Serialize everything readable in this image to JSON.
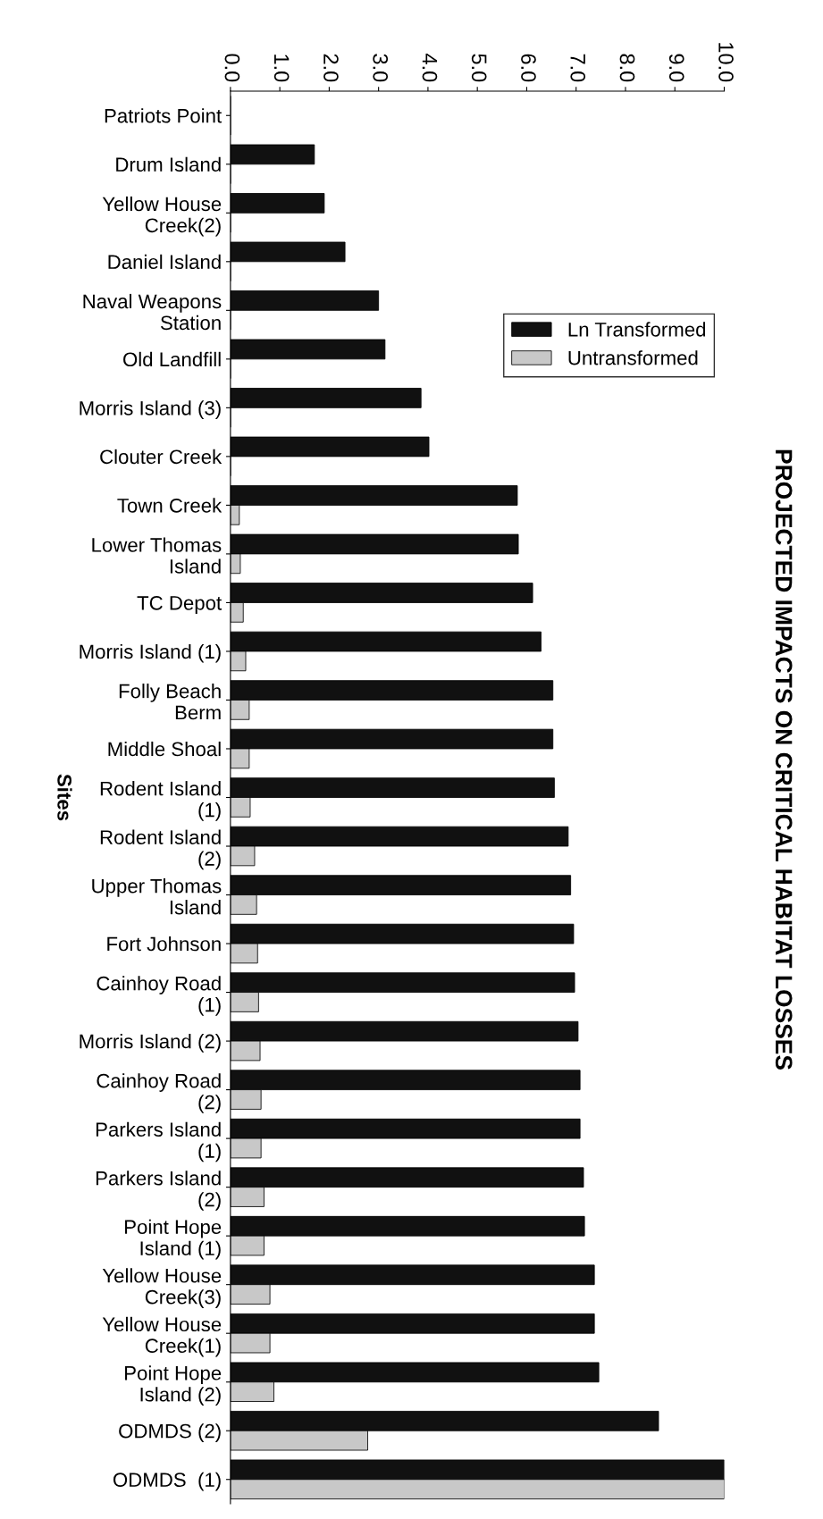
{
  "chart_data": {
    "type": "bar",
    "orientation": "horizontal",
    "title": "PROJECTED IMPACTS ON CRITICAL HABITAT LOSSES",
    "ylabel": "Sites",
    "categories": [
      "Patriots Point",
      "Drum Island",
      "Yellow House\nCreek(2)",
      "Daniel Island",
      "Naval Weapons\nStation",
      "Old Landfill",
      "Morris Island (3)",
      "Clouter Creek",
      "Town Creek",
      "Lower Thomas\nIsland",
      "TC Depot",
      "Morris Island (1)",
      "Folly Beach\nBerm",
      "Middle Shoal",
      "Rodent Island\n(1)",
      "Rodent Island\n(2)",
      "Upper Thomas\nIsland",
      "Fort Johnson",
      "Cainhoy Road\n(1)",
      "Morris Island (2)",
      "Cainhoy Road\n(2)",
      "Parkers Island\n(1)",
      "Parkers Island\n(2)",
      "Point Hope\nIsland (1)",
      "Yellow House\nCreek(3)",
      "Yellow House\nCreek(1)",
      "Point Hope\nIsland (2)",
      "ODMDS (2)",
      "ODMDS  (1)"
    ],
    "series": [
      {
        "name": "Ln Transformed",
        "color": "#111111",
        "values": [
          0,
          1.7,
          1.9,
          2.32,
          3.0,
          3.13,
          3.86,
          4.02,
          5.81,
          5.83,
          6.12,
          6.29,
          6.53,
          6.53,
          6.56,
          6.84,
          6.89,
          6.95,
          6.97,
          7.04,
          7.08,
          7.08,
          7.15,
          7.17,
          7.37,
          7.37,
          7.46,
          8.67,
          10.0
        ]
      },
      {
        "name": "Untransformed",
        "color": "#c8c8c8",
        "values": [
          0,
          0,
          0,
          0,
          0,
          0,
          0,
          0,
          0.18,
          0.2,
          0.26,
          0.31,
          0.38,
          0.38,
          0.4,
          0.49,
          0.53,
          0.55,
          0.57,
          0.6,
          0.62,
          0.62,
          0.68,
          0.68,
          0.8,
          0.8,
          0.88,
          2.78,
          10.0
        ]
      }
    ],
    "xlim": [
      0,
      10
    ],
    "xticks": [
      {
        "value": 0,
        "label": "0.0"
      },
      {
        "value": 1,
        "label": "1.0"
      },
      {
        "value": 2,
        "label": "2.0"
      },
      {
        "value": 3,
        "label": "3.0"
      },
      {
        "value": 4,
        "label": "4.0"
      },
      {
        "value": 5,
        "label": "5.0"
      },
      {
        "value": 6,
        "label": "6.0"
      },
      {
        "value": 7,
        "label": "7.0"
      },
      {
        "value": 8,
        "label": "8.0"
      },
      {
        "value": 9,
        "label": "9.0"
      },
      {
        "value": 10,
        "label": "10.0"
      }
    ],
    "legend": "right",
    "grid": false
  }
}
